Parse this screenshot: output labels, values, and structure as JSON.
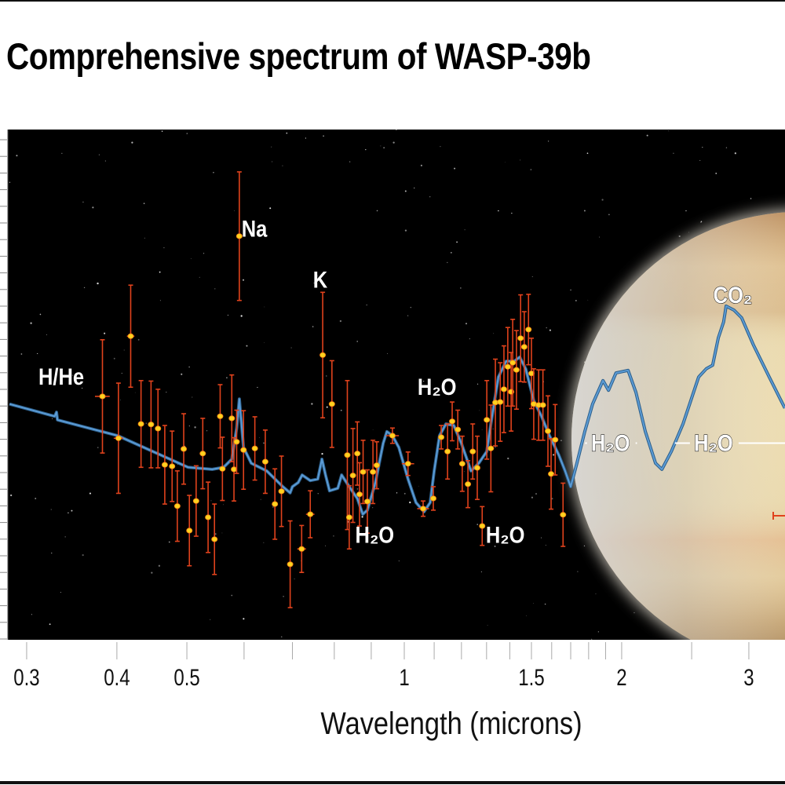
{
  "chart_data": {
    "type": "scatter",
    "title": "Comprehensive spectrum of WASP-39b",
    "xlabel": "Wavelength (microns)",
    "ylabel": "",
    "x_scale": "log",
    "xlim": [
      0.284,
      3.37
    ],
    "ylim": [
      0,
      100
    ],
    "grid": false,
    "x_ticks": [
      0.3,
      0.4,
      0.5,
      0.6,
      0.7,
      0.8,
      0.9,
      1,
      1.1,
      1.2,
      1.3,
      1.4,
      1.5,
      1.6,
      1.7,
      1.8,
      1.9,
      2,
      2.5,
      3
    ],
    "x_tick_labels": [
      {
        "value": 0.3,
        "label": "0.3"
      },
      {
        "value": 0.4,
        "label": "0.4"
      },
      {
        "value": 0.5,
        "label": "0.5"
      },
      {
        "value": 1,
        "label": "1"
      },
      {
        "value": 1.5,
        "label": "1.5"
      },
      {
        "value": 2,
        "label": "2"
      },
      {
        "value": 3,
        "label": "3"
      }
    ],
    "colors": {
      "background": "#000000",
      "model_line": "#5b9bd5",
      "error_bar": "#e0421c",
      "point": "#ffd21f",
      "point_edge": "#f07a10"
    },
    "observations": [
      {
        "x": 0.382,
        "y": 47.7,
        "err": 11.1,
        "xerr": 0.009
      },
      {
        "x": 0.402,
        "y": 39.5,
        "err": 10.8,
        "xerr": 0.006
      },
      {
        "x": 0.418,
        "y": 59.5,
        "err": 10.0,
        "xerr": 0.005
      },
      {
        "x": 0.432,
        "y": 42.3,
        "err": 8.5
      },
      {
        "x": 0.446,
        "y": 42.2,
        "err": 8.5
      },
      {
        "x": 0.456,
        "y": 41.4,
        "err": 7.7
      },
      {
        "x": 0.466,
        "y": 34.3,
        "err": 7.7
      },
      {
        "x": 0.477,
        "y": 34.0,
        "err": 6.9
      },
      {
        "x": 0.485,
        "y": 26.2,
        "err": 6.9
      },
      {
        "x": 0.495,
        "y": 37.4,
        "err": 6.9
      },
      {
        "x": 0.504,
        "y": 21.4,
        "err": 6.9
      },
      {
        "x": 0.515,
        "y": 27.2,
        "err": 6.9
      },
      {
        "x": 0.526,
        "y": 36.5,
        "err": 6.9
      },
      {
        "x": 0.535,
        "y": 24.0,
        "err": 6.9
      },
      {
        "x": 0.546,
        "y": 19.7,
        "err": 6.9
      },
      {
        "x": 0.556,
        "y": 43.8,
        "err": 6.2
      },
      {
        "x": 0.56,
        "y": 33.5,
        "err": 6.2
      },
      {
        "x": 0.577,
        "y": 43.4,
        "err": 8.5
      },
      {
        "x": 0.581,
        "y": 33.4,
        "err": 6.2
      },
      {
        "x": 0.586,
        "y": 38.8,
        "err": 6.2
      },
      {
        "x": 0.591,
        "y": 79.1,
        "err": 12.6
      },
      {
        "x": 0.599,
        "y": 37.2,
        "err": 7.7
      },
      {
        "x": 0.621,
        "y": 37.5,
        "err": 6.2
      },
      {
        "x": 0.642,
        "y": 34.9,
        "err": 6.2
      },
      {
        "x": 0.662,
        "y": 26.6,
        "err": 6.9
      },
      {
        "x": 0.676,
        "y": 29.1,
        "err": 6.9
      },
      {
        "x": 0.695,
        "y": 14.8,
        "err": 8.5
      },
      {
        "x": 0.721,
        "y": 17.8,
        "err": 4.6,
        "xerr": 0.01
      },
      {
        "x": 0.741,
        "y": 24.6,
        "err": 4.6,
        "xerr": 0.01
      },
      {
        "x": 0.771,
        "y": 55.8,
        "err": 12.3
      },
      {
        "x": 0.794,
        "y": 46.2,
        "err": 8.5
      },
      {
        "x": 0.834,
        "y": 36.2,
        "err": 14.6
      },
      {
        "x": 0.839,
        "y": 24.0,
        "err": 6.2
      },
      {
        "x": 0.849,
        "y": 32.2,
        "err": 9.2
      },
      {
        "x": 0.861,
        "y": 36.5,
        "err": 6.2
      },
      {
        "x": 0.867,
        "y": 28.5,
        "err": 6.2
      },
      {
        "x": 0.877,
        "y": 32.9,
        "err": 6.2
      },
      {
        "x": 0.889,
        "y": 27.1,
        "err": 6.2
      },
      {
        "x": 0.905,
        "y": 32.9,
        "err": 6.2
      },
      {
        "x": 0.916,
        "y": 34.2,
        "err": 4.6
      },
      {
        "x": 0.963,
        "y": 40.0,
        "err": 1.5,
        "xerr": 0.02
      },
      {
        "x": 1.012,
        "y": 34.5,
        "err": 2.3,
        "xerr": 0.02
      },
      {
        "x": 1.062,
        "y": 25.7,
        "err": 1.5,
        "xerr": 0.02
      },
      {
        "x": 1.097,
        "y": 27.7,
        "err": 2.3
      },
      {
        "x": 1.125,
        "y": 39.7,
        "err": 2.3
      },
      {
        "x": 1.148,
        "y": 36.9,
        "err": 5.4
      },
      {
        "x": 1.165,
        "y": 42.8,
        "err": 3.8
      },
      {
        "x": 1.186,
        "y": 41.2,
        "err": 3.8
      },
      {
        "x": 1.203,
        "y": 34.5,
        "err": 5.4
      },
      {
        "x": 1.225,
        "y": 30.5,
        "err": 4.6
      },
      {
        "x": 1.244,
        "y": 36.9,
        "err": 5.4
      },
      {
        "x": 1.262,
        "y": 33.7,
        "err": 6.2
      },
      {
        "x": 1.282,
        "y": 22.3,
        "err": 3.8
      },
      {
        "x": 1.301,
        "y": 43.1,
        "err": 7.7
      },
      {
        "x": 1.318,
        "y": 37.5,
        "err": 8.5
      },
      {
        "x": 1.337,
        "y": 46.5,
        "err": 8.5
      },
      {
        "x": 1.358,
        "y": 46.6,
        "err": 7.7
      },
      {
        "x": 1.374,
        "y": 49.1,
        "err": 8.5
      },
      {
        "x": 1.391,
        "y": 53.5,
        "err": 7.7
      },
      {
        "x": 1.406,
        "y": 48.6,
        "err": 7.7
      },
      {
        "x": 1.413,
        "y": 54.3,
        "err": 8.5
      },
      {
        "x": 1.43,
        "y": 52.9,
        "err": 7.7
      },
      {
        "x": 1.449,
        "y": 59.1,
        "err": 8.5
      },
      {
        "x": 1.466,
        "y": 57.4,
        "err": 6.9
      },
      {
        "x": 1.486,
        "y": 60.8,
        "err": 6.9
      },
      {
        "x": 1.5,
        "y": 52.2,
        "err": 6.9
      },
      {
        "x": 1.511,
        "y": 46.2,
        "err": 6.9
      },
      {
        "x": 1.535,
        "y": 46.0,
        "err": 6.9
      },
      {
        "x": 1.556,
        "y": 46.0,
        "err": 6.9
      },
      {
        "x": 1.581,
        "y": 40.9,
        "err": 6.9
      },
      {
        "x": 1.597,
        "y": 32.5,
        "err": 6.9
      },
      {
        "x": 1.618,
        "y": 39.2,
        "err": 6.9
      },
      {
        "x": 1.659,
        "y": 24.5,
        "err": 6.2
      }
    ],
    "model": {
      "x": [
        0.284,
        0.328,
        0.33,
        0.331,
        0.401,
        0.502,
        0.542,
        0.562,
        0.577,
        0.586,
        0.591,
        0.599,
        0.614,
        0.645,
        0.679,
        0.695,
        0.7,
        0.713,
        0.722,
        0.741,
        0.759,
        0.769,
        0.778,
        0.788,
        0.809,
        0.819,
        0.839,
        0.861,
        0.876,
        0.889,
        0.912,
        0.935,
        0.946,
        0.963,
        0.983,
        1.012,
        1.038,
        1.065,
        1.086,
        1.1,
        1.119,
        1.142,
        1.171,
        1.2,
        1.237,
        1.268,
        1.301,
        1.318,
        1.35,
        1.384,
        1.42,
        1.445,
        1.473,
        1.511,
        1.549,
        1.589,
        1.637,
        1.67,
        1.7,
        1.734,
        1.778,
        1.823,
        1.884,
        1.918,
        1.964,
        2.041,
        2.093,
        2.157,
        2.228,
        2.274,
        2.343,
        2.432,
        2.556,
        2.619,
        2.673,
        2.722,
        2.768,
        2.79,
        2.862,
        2.932,
        3.046,
        3.201,
        3.324,
        3.365
      ],
      "y": [
        46.2,
        43.8,
        44.6,
        43.1,
        40.0,
        33.8,
        33.4,
        33.8,
        35.4,
        41.5,
        47.2,
        37.7,
        34.6,
        33.1,
        30.0,
        28.8,
        30.0,
        30.8,
        32.3,
        31.2,
        31.5,
        35.4,
        32.3,
        29.2,
        29.7,
        32.3,
        30.0,
        27.7,
        24.6,
        25.4,
        30.8,
        38.5,
        40.8,
        40.0,
        37.7,
        31.5,
        26.9,
        25.1,
        26.9,
        33.1,
        40.0,
        42.3,
        42.0,
        38.5,
        33.1,
        34.6,
        36.9,
        42.3,
        51.5,
        54.6,
        54.6,
        55.4,
        53.1,
        46.9,
        43.8,
        40.0,
        36.2,
        33.1,
        30.0,
        34.6,
        40.8,
        46.2,
        50.8,
        48.9,
        52.3,
        52.8,
        48.5,
        40.8,
        34.6,
        33.4,
        36.9,
        42.3,
        51.5,
        53.1,
        53.8,
        59.2,
        62.3,
        65.4,
        64.6,
        63.1,
        57.7,
        51.5,
        46.9,
        45.4
      ]
    },
    "annotations": [
      {
        "text": "H/He",
        "x": 0.335,
        "y": 50
      },
      {
        "text": "Na",
        "x": 0.62,
        "y": 79
      },
      {
        "text": "K",
        "x": 0.765,
        "y": 69
      },
      {
        "text": "H₂O",
        "x": 1.11,
        "y": 48
      },
      {
        "text": "H₂O",
        "x": 0.91,
        "y": 19
      },
      {
        "text": "H₂O",
        "x": 1.38,
        "y": 19
      },
      {
        "text": "CO₂",
        "x": 2.85,
        "y": 66
      },
      {
        "text": "H₂O",
        "x": 1.93,
        "y": 37,
        "band": [
          1.78,
          2.1
        ]
      },
      {
        "text": "H₂O",
        "x": 2.68,
        "y": 37,
        "band": [
          2.37,
          3.37
        ]
      }
    ]
  }
}
